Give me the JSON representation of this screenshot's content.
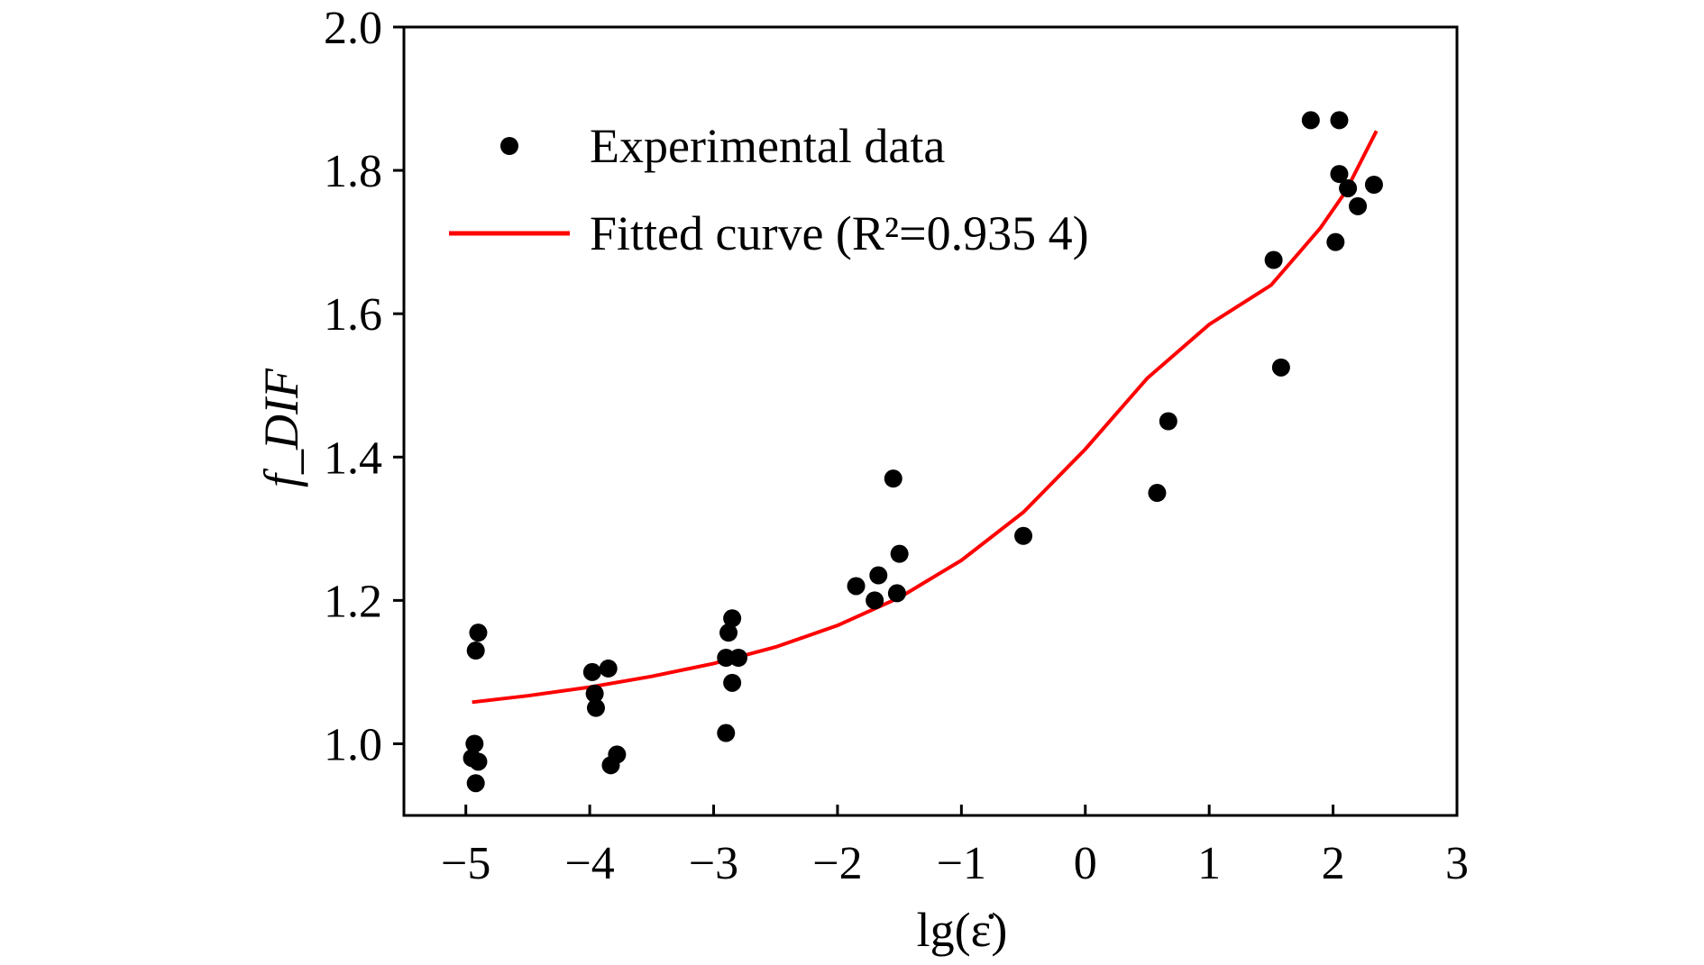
{
  "chart_data": {
    "type": "scatter",
    "title": "",
    "xlabel": "lg(ε̇)",
    "ylabel": "f_DIF",
    "xlim": [
      -5.5,
      3
    ],
    "ylim": [
      0.9,
      2.0
    ],
    "x_ticks": [
      -5,
      -4,
      -3,
      -2,
      -1,
      0,
      1,
      2,
      3
    ],
    "x_tick_labels": [
      "−5",
      "−4",
      "−3",
      "−2",
      "−1",
      "0",
      "1",
      "2",
      "3"
    ],
    "y_ticks": [
      1.0,
      1.2,
      1.4,
      1.6,
      1.8,
      2.0
    ],
    "y_tick_labels": [
      "1.0",
      "1.2",
      "1.4",
      "1.6",
      "1.8",
      "2.0"
    ],
    "grid": false,
    "legend_position": "top-left",
    "legend": [
      {
        "label": "Experimental data",
        "marker": "dot",
        "color": "#000000"
      },
      {
        "label": "Fitted curve (R²=0.935 4)",
        "marker": "line",
        "color": "#ff0000"
      }
    ],
    "series": [
      {
        "name": "Experimental data",
        "kind": "scatter",
        "color": "#000000",
        "points": [
          [
            -4.9,
            1.155
          ],
          [
            -4.92,
            1.13
          ],
          [
            -4.93,
            1.0
          ],
          [
            -4.95,
            0.98
          ],
          [
            -4.9,
            0.975
          ],
          [
            -4.92,
            0.945
          ],
          [
            -3.98,
            1.1
          ],
          [
            -3.85,
            1.105
          ],
          [
            -3.96,
            1.07
          ],
          [
            -3.95,
            1.05
          ],
          [
            -3.78,
            0.985
          ],
          [
            -3.83,
            0.97
          ],
          [
            -2.85,
            1.175
          ],
          [
            -2.88,
            1.155
          ],
          [
            -2.9,
            1.12
          ],
          [
            -2.8,
            1.12
          ],
          [
            -2.85,
            1.085
          ],
          [
            -2.9,
            1.015
          ],
          [
            -1.85,
            1.22
          ],
          [
            -1.67,
            1.235
          ],
          [
            -1.7,
            1.2
          ],
          [
            -1.55,
            1.37
          ],
          [
            -1.5,
            1.265
          ],
          [
            -1.52,
            1.21
          ],
          [
            -0.5,
            1.29
          ],
          [
            0.58,
            1.35
          ],
          [
            0.67,
            1.45
          ],
          [
            1.52,
            1.675
          ],
          [
            1.58,
            1.525
          ],
          [
            1.82,
            1.87
          ],
          [
            2.05,
            1.87
          ],
          [
            2.05,
            1.795
          ],
          [
            2.02,
            1.7
          ],
          [
            2.12,
            1.775
          ],
          [
            2.2,
            1.75
          ],
          [
            2.33,
            1.78
          ]
        ]
      },
      {
        "name": "Fitted curve (R²=0.935 4)",
        "kind": "line",
        "color": "#ff0000",
        "points": [
          [
            -4.95,
            1.058
          ],
          [
            -4.5,
            1.067
          ],
          [
            -4.0,
            1.079
          ],
          [
            -3.5,
            1.094
          ],
          [
            -3.0,
            1.112
          ],
          [
            -2.5,
            1.135
          ],
          [
            -2.0,
            1.165
          ],
          [
            -1.5,
            1.204
          ],
          [
            -1.0,
            1.256
          ],
          [
            -0.5,
            1.323
          ],
          [
            0.0,
            1.411
          ],
          [
            0.5,
            1.51
          ],
          [
            1.0,
            1.585
          ],
          [
            1.5,
            1.64
          ],
          [
            1.9,
            1.72
          ],
          [
            2.1,
            1.77
          ],
          [
            2.35,
            1.855
          ]
        ]
      }
    ]
  }
}
